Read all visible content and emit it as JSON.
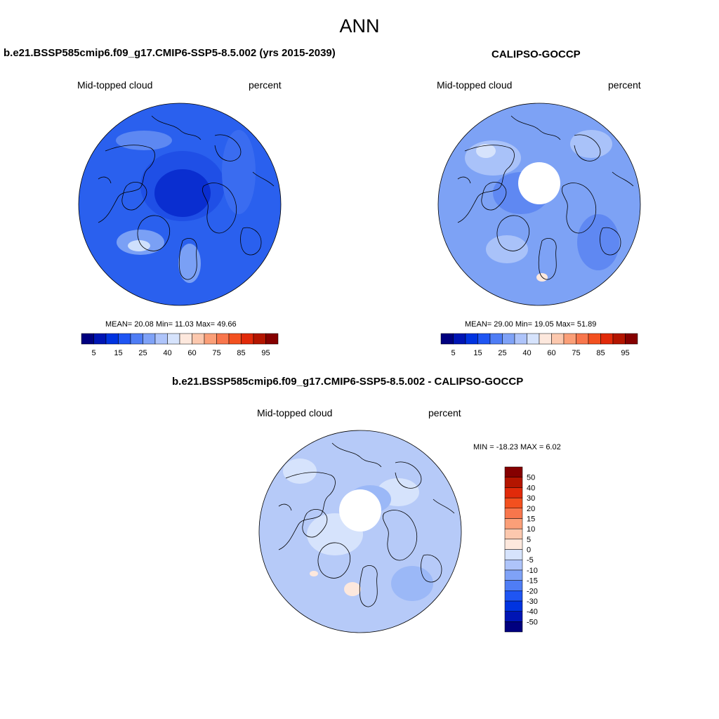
{
  "main_title": "ANN",
  "panels": [
    {
      "title": "b.e21.BSSP585cmip6.f09_g17.CMIP6-SSP5-8.5.002 (yrs 2015-2039)",
      "left_label": "Mid-topped cloud",
      "right_label": "percent",
      "stats": "MEAN=  20.08  Min=  11.03  Max=  49.66",
      "has_hole": false,
      "base_color": "#2a60ee"
    },
    {
      "title": "CALIPSO-GOCCP",
      "left_label": "Mid-topped cloud",
      "right_label": "percent",
      "stats": "MEAN=  29.00  Min=  19.05  Max=  51.89",
      "has_hole": true,
      "base_color": "#7da2f5"
    },
    {
      "title": "b.e21.BSSP585cmip6.f09_g17.CMIP6-SSP5-8.5.002 - CALIPSO-GOCCP",
      "left_label": "Mid-topped cloud",
      "right_label": "percent",
      "stats": "MIN = -18.23 MAX =   6.02",
      "has_hole": true,
      "base_color": "#b6caf8"
    }
  ],
  "colorbar_abs": {
    "colors": [
      "#00007f",
      "#0015b4",
      "#0033e0",
      "#1f55f3",
      "#4f7df5",
      "#7fa2f7",
      "#aec4fa",
      "#d6e3fc",
      "#fde8dd",
      "#fcc8ae",
      "#fb9f78",
      "#f8764c",
      "#f3501f",
      "#e12a0a",
      "#b41500",
      "#850000"
    ],
    "labels": [
      "5",
      "15",
      "25",
      "40",
      "60",
      "75",
      "85",
      "95"
    ]
  },
  "colorbar_diff": {
    "colors": [
      "#00007f",
      "#0015b4",
      "#0033e0",
      "#1f55f3",
      "#4f7df5",
      "#7fa2f7",
      "#aec4fa",
      "#d6e3fc",
      "#fde8dd",
      "#fcc8ae",
      "#fb9f78",
      "#f8764c",
      "#f3501f",
      "#e12a0a",
      "#b41500",
      "#850000"
    ],
    "labels": [
      "-50",
      "-40",
      "-30",
      "-20",
      "-15",
      "-10",
      "-5",
      "0",
      "5",
      "10",
      "15",
      "20",
      "30",
      "40",
      "50"
    ]
  }
}
